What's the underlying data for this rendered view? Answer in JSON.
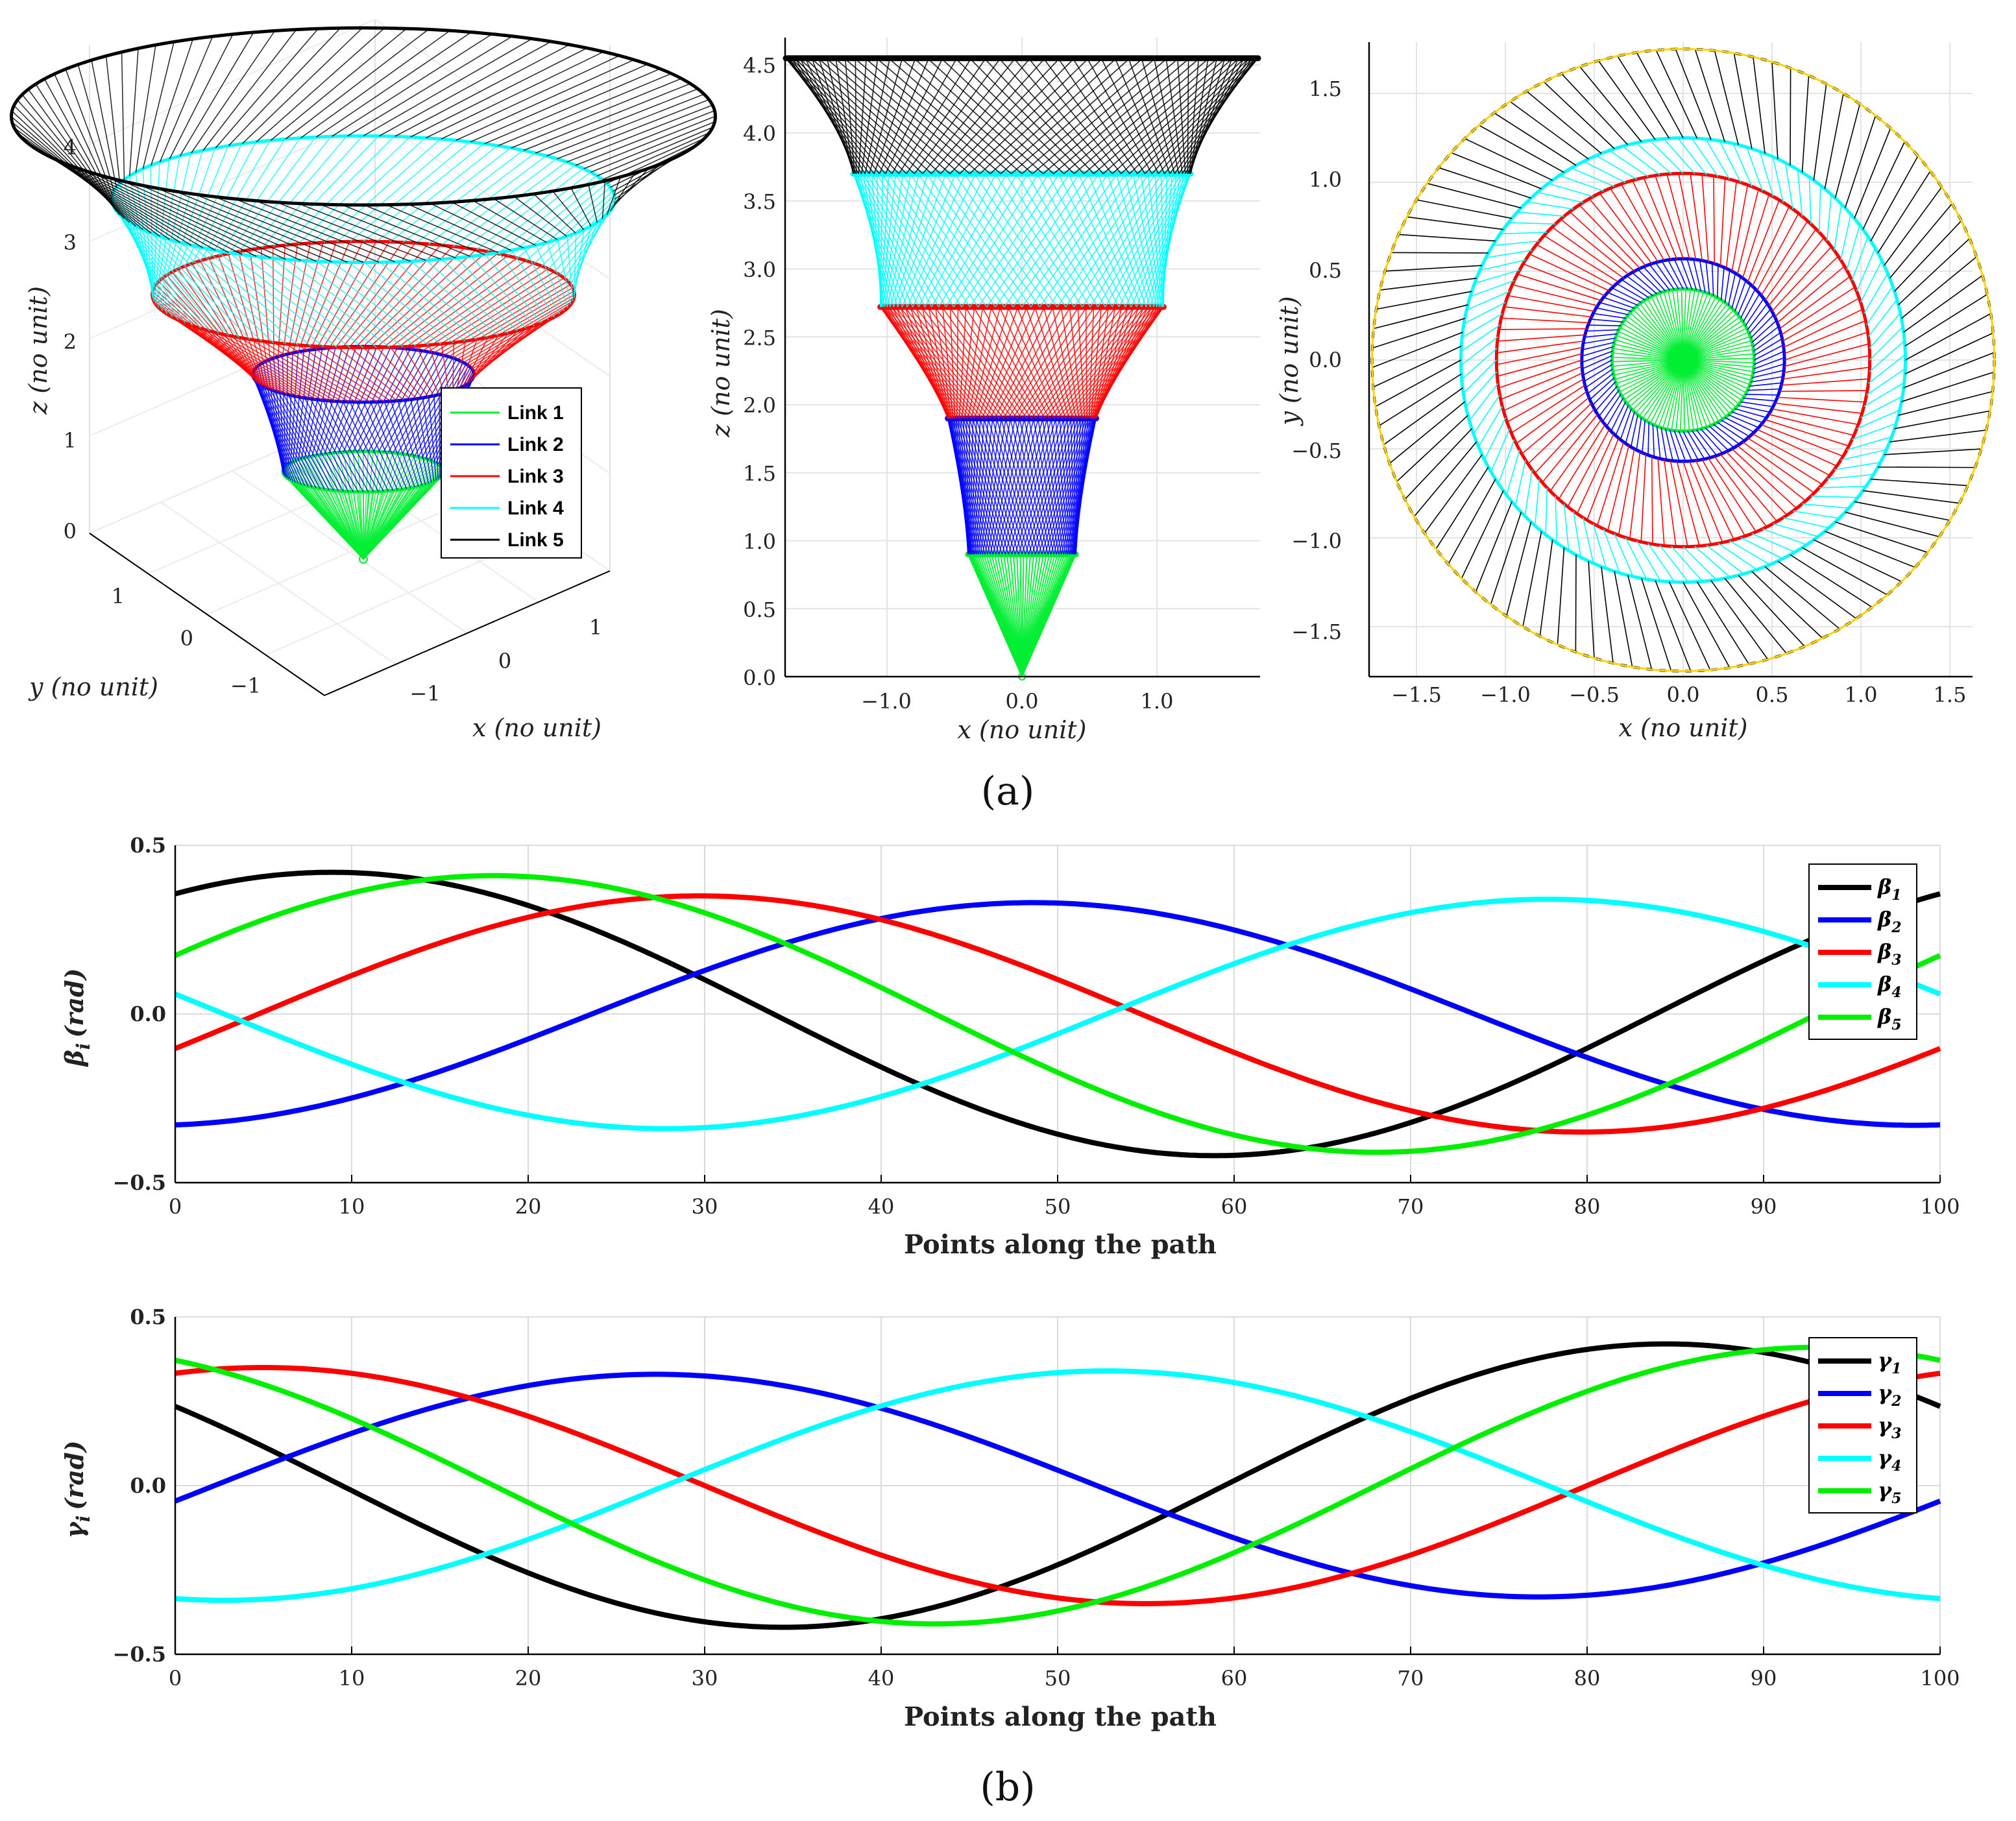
{
  "panel_a": {
    "label": "(a)",
    "legend": [
      {
        "name": "Link 1",
        "color": "#00ee33"
      },
      {
        "name": "Link 2",
        "color": "#0000ff"
      },
      {
        "name": "Link 3",
        "color": "#ff0000"
      },
      {
        "name": "Link 4",
        "color": "#00ffff"
      },
      {
        "name": "Link 5",
        "color": "#000000"
      }
    ],
    "view_3d": {
      "xlabel": "x (no unit)",
      "ylabel": "y (no unit)",
      "zlabel": "z (no unit)",
      "z_ticks": [
        "0",
        "1",
        "2",
        "3",
        "4"
      ],
      "y_ticks": [
        "1",
        "0",
        "−1"
      ],
      "x_ticks": [
        "−1",
        "0",
        "1"
      ]
    },
    "view_xz": {
      "xlabel": "x (no unit)",
      "ylabel": "z (no unit)",
      "x_ticks": [
        "−1.0",
        "0.0",
        "1.0"
      ],
      "z_ticks": [
        "0.0",
        "0.5",
        "1.0",
        "1.5",
        "2.0",
        "2.5",
        "3.0",
        "3.5",
        "4.0",
        "4.5"
      ]
    },
    "view_xy": {
      "xlabel": "x (no unit)",
      "ylabel": "y (no unit)",
      "x_ticks": [
        "−1.5",
        "−1.0",
        "−0.5",
        "0.0",
        "0.5",
        "1.0",
        "1.5"
      ],
      "y_ticks": [
        "1.5",
        "1.0",
        "0.5",
        "0.0",
        "−0.5",
        "−1.0",
        "−1.5"
      ]
    },
    "links": [
      {
        "name": "Link 1",
        "color": "#00ee33",
        "z_bottom": 0.0,
        "z_top": 0.9,
        "r_bottom": 0.0,
        "r_top": 0.4
      },
      {
        "name": "Link 2",
        "color": "#0000ff",
        "z_bottom": 0.9,
        "z_top": 1.9,
        "r_bottom": 0.4,
        "r_top": 0.55
      },
      {
        "name": "Link 3",
        "color": "#ff0000",
        "z_bottom": 1.9,
        "z_top": 2.72,
        "r_bottom": 0.55,
        "r_top": 1.05
      },
      {
        "name": "Link 4",
        "color": "#00ffff",
        "z_bottom": 2.72,
        "z_top": 3.7,
        "r_bottom": 1.05,
        "r_top": 1.25
      },
      {
        "name": "Link 5",
        "color": "#000000",
        "z_bottom": 3.7,
        "z_top": 4.55,
        "r_bottom": 1.25,
        "r_top": 1.75
      }
    ]
  },
  "panel_b": {
    "label": "(b)"
  },
  "chart_data": [
    {
      "type": "line",
      "title": "",
      "xlabel": "Points along the path",
      "ylabel": "βi (rad)",
      "ylabel_main": "β",
      "ylabel_sub": "i",
      "ylabel_unit": "(rad)",
      "xlim": [
        0,
        100
      ],
      "ylim": [
        -0.5,
        0.5
      ],
      "x_ticks": [
        0,
        10,
        20,
        30,
        40,
        50,
        60,
        70,
        80,
        90,
        100
      ],
      "y_ticks": [
        -0.5,
        0.0,
        0.5
      ],
      "y_tick_labels": [
        "−0.5",
        "0.0",
        "0.5"
      ],
      "legend_position": "top-right",
      "series": [
        {
          "name": "β1",
          "base": "β",
          "sub": "1",
          "color": "#000000",
          "amplitude": 0.42,
          "phase_deg": 58,
          "period": 100
        },
        {
          "name": "β2",
          "base": "β",
          "sub": "2",
          "color": "#0000ff",
          "amplitude": 0.33,
          "phase_deg": -85,
          "period": 100
        },
        {
          "name": "β3",
          "base": "β",
          "sub": "3",
          "color": "#ff0000",
          "amplitude": 0.35,
          "phase_deg": -17,
          "period": 100
        },
        {
          "name": "β4",
          "base": "β",
          "sub": "4",
          "color": "#00ffff",
          "amplitude": 0.34,
          "phase_deg": 170,
          "period": 100
        },
        {
          "name": "β5",
          "base": "β",
          "sub": "5",
          "color": "#00ee00",
          "amplitude": 0.41,
          "phase_deg": 25,
          "period": 100
        }
      ]
    },
    {
      "type": "line",
      "title": "",
      "xlabel": "Points along the path",
      "ylabel": "γi (rad)",
      "ylabel_main": "γ",
      "ylabel_sub": "i",
      "ylabel_unit": "(rad)",
      "xlim": [
        0,
        100
      ],
      "ylim": [
        -0.5,
        0.5
      ],
      "x_ticks": [
        0,
        10,
        20,
        30,
        40,
        50,
        60,
        70,
        80,
        90,
        100
      ],
      "y_ticks": [
        -0.5,
        0.0,
        0.5
      ],
      "y_tick_labels": [
        "−0.5",
        "0.0",
        "0.5"
      ],
      "legend_position": "top-right",
      "series": [
        {
          "name": "γ1",
          "base": "γ",
          "sub": "1",
          "color": "#000000",
          "amplitude": 0.42,
          "phase_deg": 146,
          "period": 100
        },
        {
          "name": "γ2",
          "base": "γ",
          "sub": "2",
          "color": "#0000ff",
          "amplitude": 0.33,
          "phase_deg": -8,
          "period": 100
        },
        {
          "name": "γ3",
          "base": "γ",
          "sub": "3",
          "color": "#ff0000",
          "amplitude": 0.35,
          "phase_deg": 72,
          "period": 100
        },
        {
          "name": "γ4",
          "base": "γ",
          "sub": "4",
          "color": "#00ffff",
          "amplitude": 0.34,
          "phase_deg": -100,
          "period": 100
        },
        {
          "name": "γ5",
          "base": "γ",
          "sub": "5",
          "color": "#00ee00",
          "amplitude": 0.41,
          "phase_deg": 115,
          "period": 100
        }
      ]
    }
  ]
}
